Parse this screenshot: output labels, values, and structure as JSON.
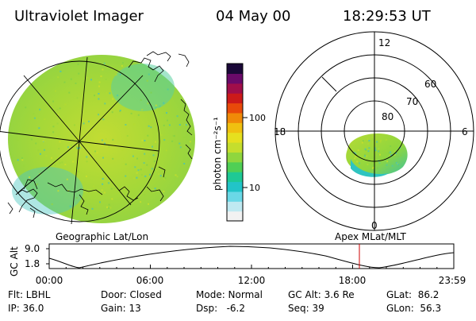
{
  "header": {
    "title": "Ultraviolet Imager",
    "date": "04 May 00",
    "time": "18:29:53 UT"
  },
  "colorbar": {
    "unit_label": "photon cm⁻²s⁻¹",
    "ticks": [
      "100",
      "10"
    ],
    "colors": [
      "#f2f2f2",
      "#bfe9f1",
      "#6ad8e6",
      "#22c4c8",
      "#1ec995",
      "#4fcf55",
      "#8fd63e",
      "#c5de2d",
      "#e6e01f",
      "#f0c010",
      "#f08a08",
      "#e84a0a",
      "#cc1a1a",
      "#a00e4a",
      "#6a0a6a",
      "#1a0838"
    ]
  },
  "polar_plot": {
    "top_label": "12",
    "left_label": "18",
    "right_label": "6",
    "bottom_label": "0",
    "ring_labels": [
      "60",
      "70",
      "80"
    ],
    "aurora_color": "#9ad63a"
  },
  "left_panel_label": "Geographic Lat/Lon",
  "right_panel_label": "Apex MLat/MLT",
  "altitude_plot": {
    "ylabel": "GC Alt",
    "ytick_top": "9.0",
    "ytick_bottom": "1.8",
    "xticks": [
      "00:00",
      "06:00",
      "12:00",
      "18:00",
      "23:59"
    ],
    "marker_color": "#cc0000"
  },
  "info": {
    "row1": [
      "Flt: LBHL",
      "Door: Closed",
      "Mode: Normal",
      "GC Alt: 3.6 Re",
      "GLat:  86.2"
    ],
    "row2": [
      "IP: 36.0",
      "Gain: 13",
      "Dsp:   -6.2",
      "Seq: 39",
      "GLon:  56.3"
    ]
  },
  "colors": {
    "disk_green": "#8fd63e",
    "disk_yellow": "#c5de2d",
    "disk_cyan": "#2fc4c0",
    "line": "#000000"
  }
}
